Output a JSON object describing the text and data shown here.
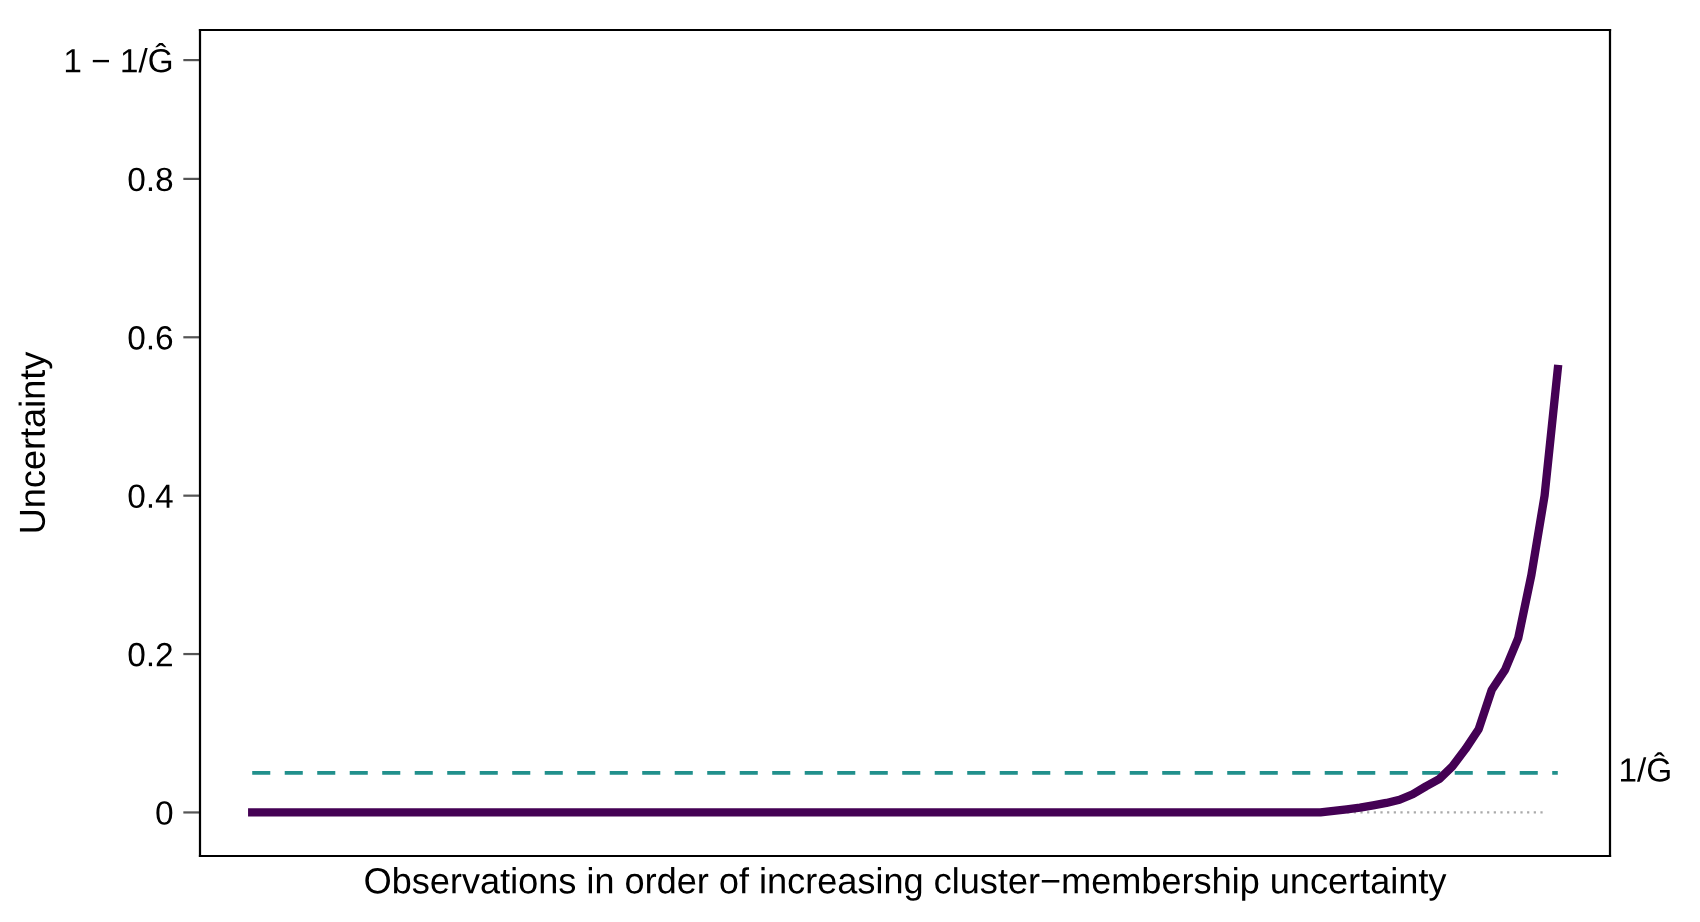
{
  "chart_data": {
    "type": "line",
    "xlabel": "Observations in order of increasing cluster−membership uncertainty",
    "ylabel": "Uncertainty",
    "categories": [
      null,
      null,
      null,
      null,
      null,
      null,
      null,
      null,
      null,
      null,
      null,
      null,
      null,
      null,
      null,
      null,
      null,
      null,
      null,
      null,
      null,
      null,
      null,
      null,
      null,
      null,
      null,
      null,
      null,
      null,
      null,
      null,
      null,
      null,
      null,
      null,
      null,
      null,
      null,
      null,
      null,
      null,
      null,
      null,
      null,
      null,
      null,
      null,
      null,
      null,
      null,
      null,
      null,
      null,
      null,
      null,
      null,
      null,
      null,
      null,
      null,
      null,
      null,
      null,
      null,
      null,
      null,
      null,
      null,
      null,
      null,
      null,
      null,
      null,
      null,
      null,
      null,
      null,
      null,
      null,
      null,
      null,
      null,
      null,
      null,
      null,
      null,
      null,
      null,
      null,
      null,
      null,
      null,
      null,
      null,
      null,
      null,
      null,
      null,
      null
    ],
    "series": [
      {
        "color": "#aaaaaa",
        "line_style": "dotted",
        "values": [
          null,
          null,
          null,
          null,
          null,
          null,
          null,
          null,
          null,
          null,
          null,
          null,
          null,
          null,
          null,
          null,
          null,
          null,
          null,
          null,
          null,
          null,
          null,
          null,
          null,
          null,
          null,
          null,
          null,
          null,
          null,
          null,
          null,
          null,
          null,
          null,
          null,
          null,
          null,
          null,
          null,
          null,
          null,
          null,
          null,
          null,
          null,
          null,
          null,
          null,
          null,
          null,
          null,
          null,
          null,
          null,
          null,
          null,
          null,
          null,
          null,
          null,
          null,
          null,
          null,
          null,
          null,
          null,
          null,
          null,
          null,
          null,
          null,
          null,
          null,
          null,
          null,
          null,
          null,
          null,
          null,
          0,
          0,
          0,
          0,
          0,
          0,
          0,
          0,
          0,
          0,
          0,
          0,
          0,
          0,
          0,
          0,
          0,
          0,
          null
        ]
      },
      {
        "color": "#440154",
        "line_style": "solid",
        "values": [
          0,
          0,
          0,
          0,
          0,
          0,
          0,
          0,
          0,
          0,
          0,
          0,
          0,
          0,
          0,
          0,
          0,
          0,
          0,
          0,
          0,
          0,
          0,
          0,
          0,
          0,
          0,
          0,
          0,
          0,
          0,
          0,
          0,
          0,
          0,
          0,
          0,
          0,
          0,
          0,
          0,
          0,
          0,
          0,
          0,
          0,
          0,
          0,
          0,
          0,
          0,
          0,
          0,
          0,
          0,
          0,
          0,
          0,
          0,
          0,
          0,
          0,
          0,
          0,
          0,
          0,
          0,
          0,
          0,
          0,
          0,
          0,
          0,
          0,
          0,
          0,
          0,
          0,
          0,
          0,
          0,
          0,
          0.002,
          0.004,
          0.006,
          0.009,
          0.012,
          0.016,
          0.023,
          0.033,
          0.042,
          0.058,
          0.08,
          0.105,
          0.155,
          0.18,
          0.22,
          0.3,
          0.4,
          0.56
        ]
      }
    ],
    "ylim": [
      -0.055,
      0.988
    ],
    "yticks": [
      0,
      0.2,
      0.4,
      0.6,
      0.8,
      {
        "value": 0.95,
        "label": "1 − 1/Ĝ"
      }
    ],
    "ref_lines": [
      {
        "axis": "y",
        "value": 0.05,
        "label": "1/Ĝ",
        "color": "#21908c",
        "line_style": "dashed"
      }
    ],
    "tick_labels": "y",
    "grid": false
  }
}
